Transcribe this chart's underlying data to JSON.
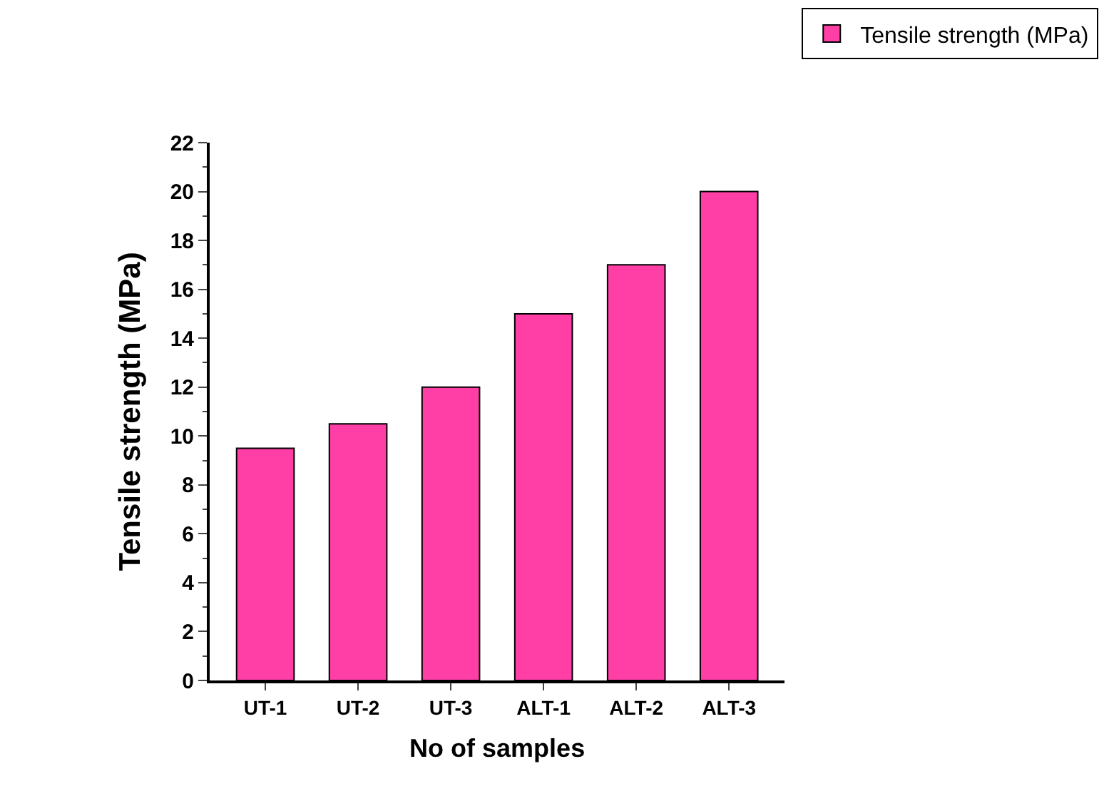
{
  "chart_data": {
    "type": "bar",
    "xlabel": "No of samples",
    "ylabel": "Tensile strength (MPa)",
    "categories": [
      "UT-1",
      "UT-2",
      "UT-3",
      "ALT-1",
      "ALT-2",
      "ALT-3"
    ],
    "series": [
      {
        "name": "Tensile strength (MPa)",
        "color": "#ff3fa6",
        "values": [
          9.5,
          10.5,
          12,
          15,
          17,
          20
        ]
      }
    ],
    "ylim": [
      0,
      22
    ],
    "yticks": [
      0,
      2,
      4,
      6,
      8,
      10,
      12,
      14,
      16,
      18,
      20,
      22
    ],
    "legend": "top right"
  }
}
